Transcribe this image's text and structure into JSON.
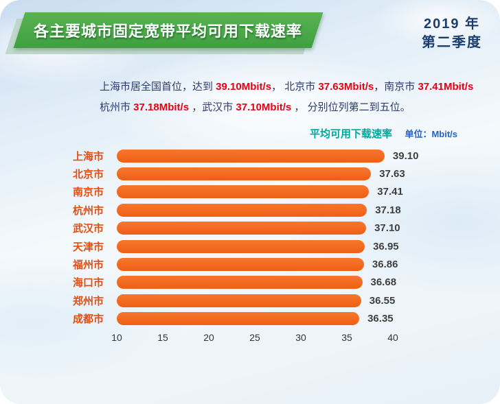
{
  "banner": {
    "title": "各主要城市固定宽带平均可用下载速率"
  },
  "period": {
    "year": "2019 年",
    "quarter": "第二季度"
  },
  "description": {
    "lines": [
      [
        {
          "t": "上海市居全国首位，达到 ",
          "red": false
        },
        {
          "t": "39.10Mbit/s",
          "red": true
        },
        {
          "t": "， 北京市 ",
          "red": false
        },
        {
          "t": "37.63Mbit/s",
          "red": true
        },
        {
          "t": "，南京市 ",
          "red": false
        },
        {
          "t": "37.41Mbit/s",
          "red": true
        }
      ],
      [
        {
          "t": "杭州市 ",
          "red": false
        },
        {
          "t": "37.18Mbit/s",
          "red": true
        },
        {
          "t": " ，武汉市 ",
          "red": false
        },
        {
          "t": "37.10Mbit/s",
          "red": true
        },
        {
          "t": " ， 分别位列第二到五位。",
          "red": false
        }
      ]
    ]
  },
  "chart_header": {
    "label": "平均可用下载速率",
    "unit": "单位：Mbit/s"
  },
  "chart_data": {
    "type": "bar",
    "orientation": "horizontal",
    "title": "平均可用下载速率",
    "unit": "Mbit/s",
    "categories": [
      "上海市",
      "北京市",
      "南京市",
      "杭州市",
      "武汉市",
      "天津市",
      "福州市",
      "海口市",
      "郑州市",
      "成都市"
    ],
    "values": [
      39.1,
      37.63,
      37.41,
      37.18,
      37.1,
      36.95,
      36.86,
      36.68,
      36.55,
      36.35
    ],
    "xlim": [
      10,
      40
    ],
    "xticks": [
      10,
      15,
      20,
      25,
      30,
      35,
      40
    ],
    "grid": false,
    "legend": "none",
    "bar_color": "#F2661E",
    "label_color": "#E04E12"
  }
}
